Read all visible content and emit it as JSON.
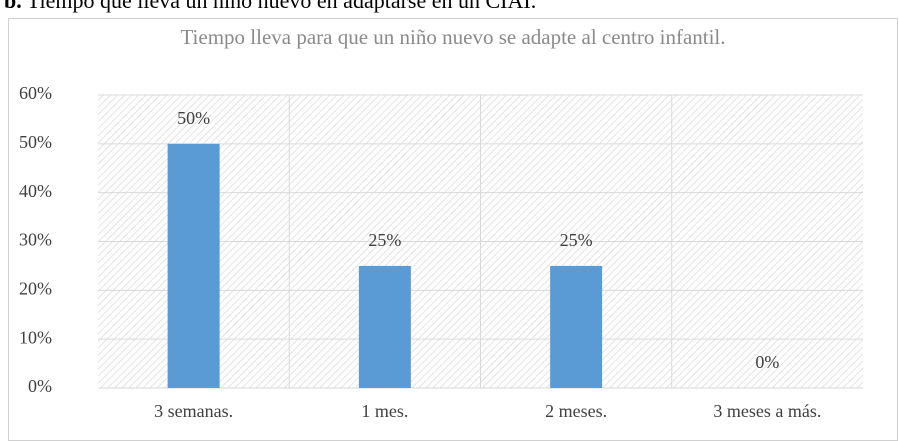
{
  "header": {
    "label": "b.",
    "text": "Tiempo que lleva un niño nuevo en adaptarse en un CIAI."
  },
  "chart_data": {
    "type": "bar",
    "title": "Tiempo lleva para que un niño nuevo se adapte al centro infantil.",
    "categories": [
      "3 semanas.",
      "1 mes.",
      "2 meses.",
      "3 meses a más."
    ],
    "values": [
      50,
      25,
      25,
      0
    ],
    "value_labels": [
      "50%",
      "25%",
      "25%",
      "0%"
    ],
    "color": "#5b9bd5",
    "ylim": [
      0,
      60
    ],
    "yticks": [
      {
        "value": 0,
        "label": "0%"
      },
      {
        "value": 10,
        "label": "10%"
      },
      {
        "value": 20,
        "label": "20%"
      },
      {
        "value": 30,
        "label": "30%"
      },
      {
        "value": 40,
        "label": "40%"
      },
      {
        "value": 50,
        "label": "50%"
      },
      {
        "value": 60,
        "label": "60%"
      }
    ],
    "grid": true
  }
}
